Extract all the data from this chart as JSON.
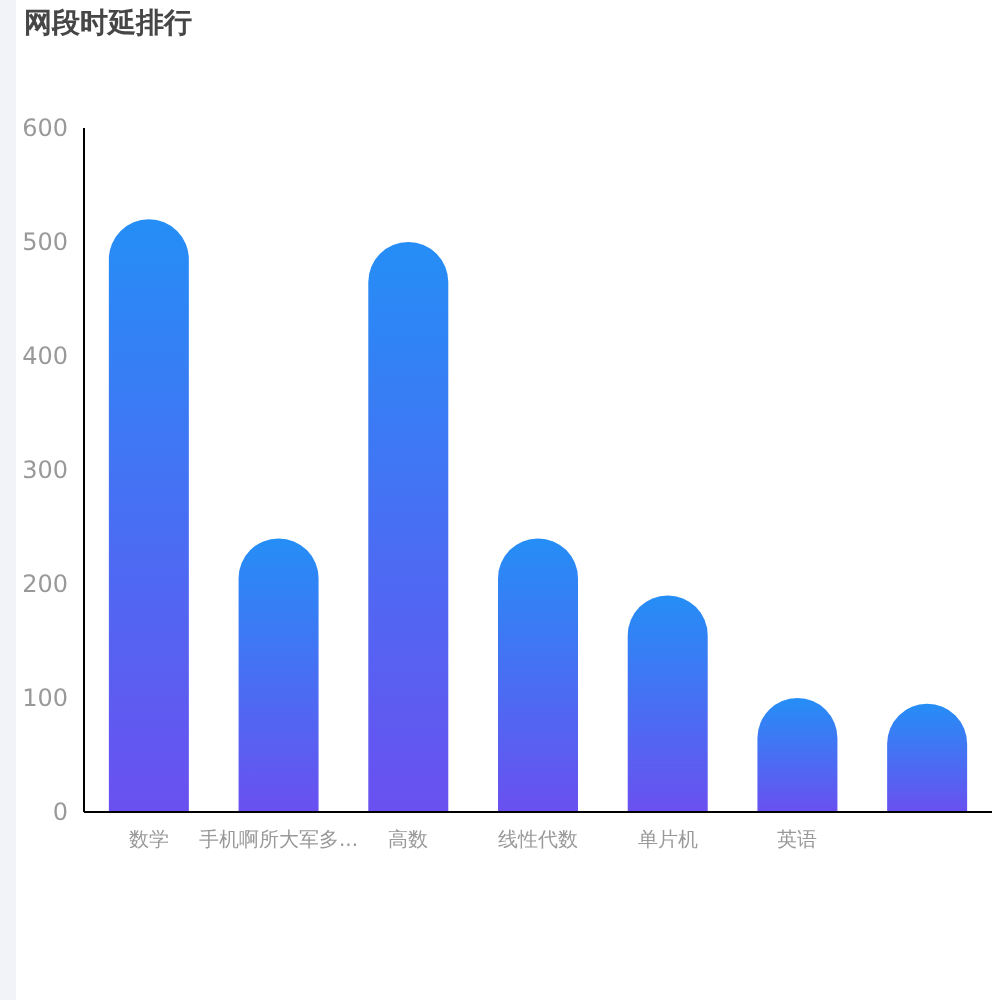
{
  "chart_data": {
    "type": "bar",
    "title": "网段时延排行",
    "categories": [
      "数学",
      "手机啊所大军多...",
      "高数",
      "线性代数",
      "单片机",
      "英语",
      null
    ],
    "values": [
      520,
      240,
      500,
      240,
      190,
      100,
      95
    ],
    "color": "#258ef6",
    "ylim": [
      0,
      600
    ],
    "yticks": [
      0,
      100,
      200,
      300,
      400,
      500,
      600
    ],
    "grid": false
  }
}
